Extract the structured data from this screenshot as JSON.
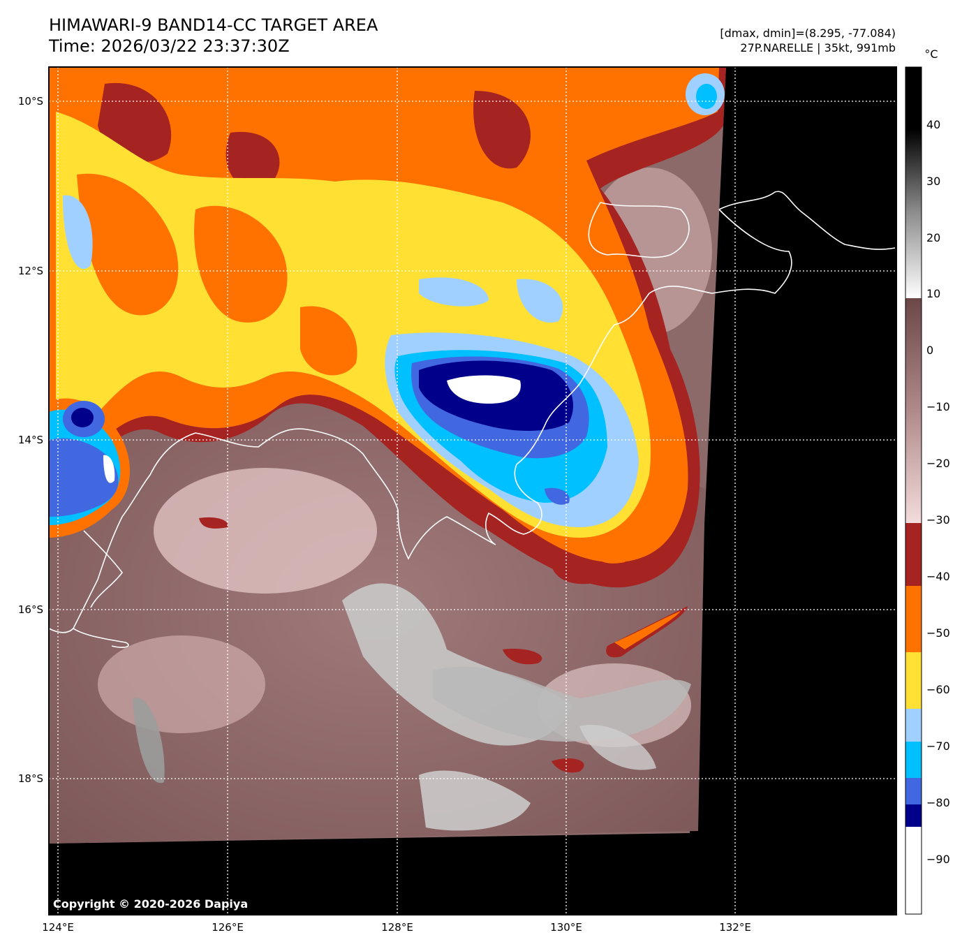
{
  "header": {
    "title_line1": "HIMAWARI-9 BAND14-CC TARGET AREA",
    "title_line2": "Time: 2026/03/22 23:37:30Z",
    "range_text": "[dmax, dmin]=(8.295, -77.084)",
    "storm_text": "27P.NARELLE | 35kt, 991mb"
  },
  "map": {
    "lon_ticks": [
      "124°E",
      "126°E",
      "128°E",
      "130°E",
      "132°E"
    ],
    "lat_ticks": [
      "10°S",
      "12°S",
      "14°S",
      "16°S",
      "18°S"
    ],
    "copyright": "Copyright © 2020-2026 Dapiya"
  },
  "colorbar": {
    "unit": "°C",
    "tick_labels": [
      "40",
      "30",
      "20",
      "10",
      "0",
      "−10",
      "−20",
      "−30",
      "−40",
      "−50",
      "−60",
      "−70",
      "−80",
      "−90"
    ],
    "colors": {
      "warm_black": "#000000",
      "mid_gray": "#8a8a8a",
      "white": "#ffffff",
      "brown_dark": "#6b4747",
      "brown_light": "#f3dcdc",
      "red": "#a52321",
      "orange": "#ff7200",
      "yellow": "#ffe033",
      "light_blue": "#a0d0ff",
      "cyan": "#00c0ff",
      "royal_blue": "#4168e0",
      "navy": "#00008b"
    }
  }
}
